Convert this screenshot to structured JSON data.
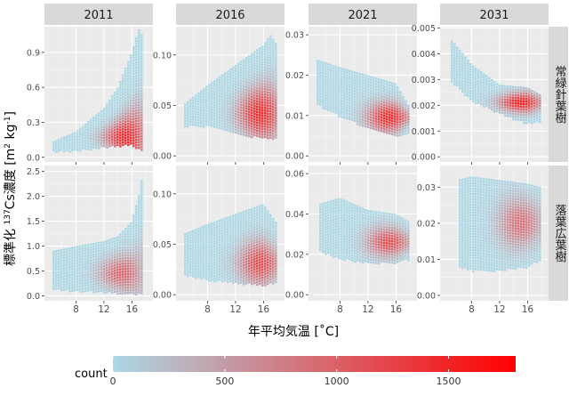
{
  "chart_data": {
    "type": "heatmap",
    "title": "",
    "xlabel": "年平均気温 [˚C]",
    "ylabel_parts": [
      "標準化 ",
      "137",
      "Cs濃度 [m",
      "2",
      " kg",
      "-1",
      "]"
    ],
    "columns": [
      "2011",
      "2016",
      "2021",
      "2031"
    ],
    "rows": [
      "常緑針葉樹",
      "落葉広葉樹"
    ],
    "x_range": [
      3.5,
      19
    ],
    "x_ticks": [
      8,
      12,
      16
    ],
    "panel_axes": [
      [
        {
          "ylim": [
            -0.04,
            1.12
          ],
          "ticks": [
            0.0,
            0.3,
            0.6,
            0.9
          ]
        },
        {
          "ylim": [
            -0.006,
            0.128
          ],
          "ticks": [
            0.0,
            0.05,
            0.1
          ]
        },
        {
          "ylim": [
            -0.0015,
            0.032
          ],
          "ticks": [
            0.0,
            0.01,
            0.02,
            0.03
          ]
        },
        {
          "ylim": [
            -0.0002,
            0.00505
          ],
          "ticks": [
            0.0,
            0.001,
            0.002,
            0.003,
            0.004,
            0.005
          ]
        }
      ],
      [
        {
          "ylim": [
            -0.1,
            2.62
          ],
          "ticks": [
            0.0,
            0.5,
            1.0,
            1.5,
            2.0,
            2.5
          ]
        },
        {
          "ylim": [
            -0.006,
            0.128
          ],
          "ticks": [
            0.0,
            0.05,
            0.1
          ]
        },
        {
          "ylim": [
            -0.003,
            0.064
          ],
          "ticks": [
            0.0,
            0.02,
            0.04,
            0.06
          ]
        },
        {
          "ylim": [
            -0.0015,
            0.036
          ],
          "ticks": [
            0.0,
            0.01,
            0.02,
            0.03
          ]
        }
      ]
    ],
    "panels": [
      [
        {
          "cx": 15.0,
          "cy": 0.17,
          "peak": 1500,
          "lower": [
            [
              4.5,
              0.05
            ],
            [
              8,
              0.06
            ],
            [
              12,
              0.09
            ],
            [
              14,
              0.1
            ],
            [
              16,
              0.11
            ],
            [
              17.5,
              0.05
            ]
          ],
          "upper": [
            [
              4.5,
              0.13
            ],
            [
              8,
              0.22
            ],
            [
              12,
              0.42
            ],
            [
              14,
              0.6
            ],
            [
              16,
              0.9
            ],
            [
              17,
              1.1
            ],
            [
              17.5,
              1.05
            ]
          ]
        },
        {
          "cx": 15.5,
          "cy": 0.042,
          "peak": 1500,
          "lower": [
            [
              4.5,
              0.03
            ],
            [
              8,
              0.03
            ],
            [
              12,
              0.022
            ],
            [
              16,
              0.018
            ],
            [
              18,
              0.018
            ]
          ],
          "upper": [
            [
              4.5,
              0.05
            ],
            [
              8,
              0.07
            ],
            [
              12,
              0.09
            ],
            [
              14,
              0.1
            ],
            [
              16,
              0.11
            ],
            [
              17,
              0.12
            ],
            [
              18,
              0.11
            ]
          ]
        },
        {
          "cx": 15.0,
          "cy": 0.0095,
          "peak": 1500,
          "lower": [
            [
              4.5,
              0.013
            ],
            [
              8,
              0.01
            ],
            [
              12,
              0.007
            ],
            [
              16,
              0.005
            ],
            [
              18,
              0.006
            ]
          ],
          "upper": [
            [
              4.5,
              0.024
            ],
            [
              8,
              0.022
            ],
            [
              12,
              0.02
            ],
            [
              16,
              0.018
            ],
            [
              18,
              0.012
            ]
          ]
        },
        {
          "cx": 15.0,
          "cy": 0.0021,
          "peak": 1600,
          "lower": [
            [
              5,
              0.003
            ],
            [
              8,
              0.0022
            ],
            [
              12,
              0.0017
            ],
            [
              16,
              0.0013
            ],
            [
              18,
              0.0014
            ]
          ],
          "upper": [
            [
              5,
              0.0046
            ],
            [
              8,
              0.0036
            ],
            [
              12,
              0.0028
            ],
            [
              16,
              0.0027
            ],
            [
              18,
              0.0024
            ]
          ]
        }
      ],
      [
        {
          "cx": 14.5,
          "cy": 0.45,
          "peak": 1000,
          "lower": [
            [
              4.5,
              0.15
            ],
            [
              8,
              0.1
            ],
            [
              12,
              0.08
            ],
            [
              16,
              0.05
            ],
            [
              17.5,
              0.05
            ]
          ],
          "upper": [
            [
              4.5,
              0.9
            ],
            [
              8,
              1.0
            ],
            [
              12,
              1.1
            ],
            [
              14,
              1.2
            ],
            [
              16,
              1.5
            ],
            [
              17,
              2.0
            ],
            [
              17.5,
              2.4
            ]
          ]
        },
        {
          "cx": 15.5,
          "cy": 0.031,
          "peak": 1200,
          "lower": [
            [
              4.5,
              0.02
            ],
            [
              8,
              0.015
            ],
            [
              12,
              0.012
            ],
            [
              16,
              0.01
            ],
            [
              18,
              0.012
            ]
          ],
          "upper": [
            [
              4.5,
              0.06
            ],
            [
              8,
              0.07
            ],
            [
              12,
              0.08
            ],
            [
              16,
              0.09
            ],
            [
              18,
              0.07
            ]
          ]
        },
        {
          "cx": 15.0,
          "cy": 0.026,
          "peak": 1200,
          "lower": [
            [
              5,
              0.022
            ],
            [
              8,
              0.018
            ],
            [
              12,
              0.016
            ],
            [
              16,
              0.016
            ],
            [
              18,
              0.018
            ]
          ],
          "upper": [
            [
              5,
              0.045
            ],
            [
              8,
              0.048
            ],
            [
              12,
              0.042
            ],
            [
              16,
              0.04
            ],
            [
              18,
              0.036
            ]
          ]
        },
        {
          "cx": 15.0,
          "cy": 0.02,
          "peak": 900,
          "lower": [
            [
              6,
              0.008
            ],
            [
              8,
              0.007
            ],
            [
              12,
              0.007
            ],
            [
              16,
              0.008
            ],
            [
              18,
              0.01
            ]
          ],
          "upper": [
            [
              6,
              0.032
            ],
            [
              8,
              0.033
            ],
            [
              12,
              0.032
            ],
            [
              16,
              0.031
            ],
            [
              18,
              0.03
            ]
          ]
        }
      ]
    ],
    "legend": {
      "title": "count",
      "position": "bottom",
      "min": 0,
      "max": 1800,
      "ticks": [
        0,
        500,
        1000,
        1500
      ],
      "low_color": "#add8e6",
      "high_color": "#ff0000"
    },
    "grid": true
  }
}
